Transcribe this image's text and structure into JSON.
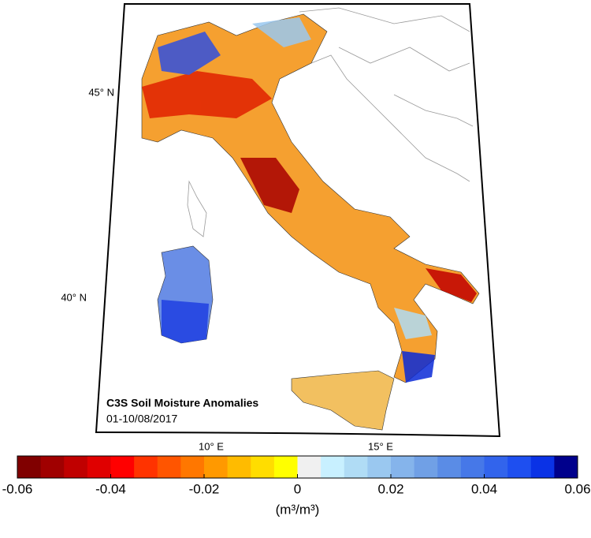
{
  "map": {
    "title": "C3S Soil Moisture Anomalies",
    "period": "01-10/08/2017",
    "lat_labels": [
      {
        "value": 45,
        "label": "45° N"
      },
      {
        "value": 40,
        "label": "40° N"
      }
    ],
    "lon_labels": [
      {
        "value": 10,
        "label": "10° E"
      },
      {
        "value": 15,
        "label": "15° E"
      }
    ]
  },
  "colorbar": {
    "lim": [
      -0.06,
      0.06
    ],
    "ticks": [
      -0.06,
      -0.04,
      -0.02,
      0,
      0.02,
      0.04,
      0.06
    ],
    "label": "(m³/m³)",
    "colors": [
      "#800000",
      "#a00000",
      "#c00000",
      "#e00000",
      "#ff0000",
      "#ff3300",
      "#ff5500",
      "#ff7700",
      "#ff9900",
      "#ffbb00",
      "#ffdd00",
      "#ffff00",
      "#f0f0f0",
      "#c8f0ff",
      "#b0dcf5",
      "#9ac8f0",
      "#85b4eb",
      "#70a0e6",
      "#5a8ce6",
      "#4678e8",
      "#3264ec",
      "#1e4ff0",
      "#0a32e6",
      "#00008c"
    ]
  }
}
